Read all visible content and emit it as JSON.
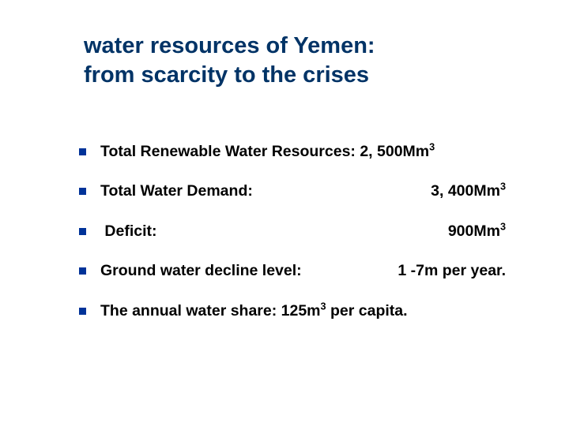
{
  "title_line1": "water resources of Yemen:",
  "title_line2": " from scarcity to the crises",
  "bullet_color": "#003399",
  "title_color": "#003366",
  "text_color": "#000000",
  "items": [
    {
      "label_html": "Total Renewable Water Resources: 2, 500Mm<sup>3</sup>",
      "value_html": ""
    },
    {
      "label_html": "Total Water Demand:",
      "value_html": "3, 400Mm<sup>3</sup>"
    },
    {
      "label_html": " Deficit:",
      "value_html": "900Mm<sup>3</sup>"
    },
    {
      "label_html": "Ground water decline level:",
      "value_html": "1 -7m per year."
    },
    {
      "label_html": "The annual water share: 125m<sup>3</sup> per capita.",
      "value_html": ""
    }
  ]
}
